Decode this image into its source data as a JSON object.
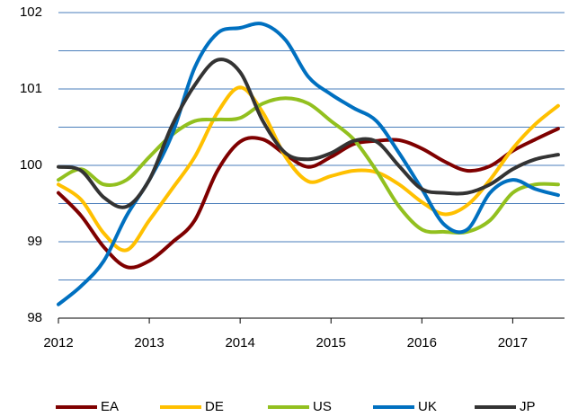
{
  "chart_data": {
    "type": "line",
    "x": [
      2012,
      2012.25,
      2012.5,
      2012.75,
      2013,
      2013.25,
      2013.5,
      2013.75,
      2014,
      2014.25,
      2014.5,
      2014.75,
      2015,
      2015.25,
      2015.5,
      2015.75,
      2016,
      2016.25,
      2016.5,
      2016.75,
      2017,
      2017.25,
      2017.5
    ],
    "series": [
      {
        "name": "EA",
        "color": "#7f0000",
        "values": [
          99.64,
          99.34,
          98.93,
          98.67,
          98.75,
          98.99,
          99.28,
          99.93,
          100.31,
          100.34,
          100.14,
          99.98,
          100.11,
          100.28,
          100.32,
          100.33,
          100.22,
          100.05,
          99.93,
          99.99,
          100.19,
          100.34,
          100.48
        ]
      },
      {
        "name": "DE",
        "color": "#ffc000",
        "values": [
          99.75,
          99.55,
          99.11,
          98.89,
          99.28,
          99.69,
          100.11,
          100.69,
          101.02,
          100.69,
          100.11,
          99.79,
          99.86,
          99.93,
          99.91,
          99.75,
          99.52,
          99.36,
          99.48,
          99.81,
          100.22,
          100.54,
          100.78
        ]
      },
      {
        "name": "US",
        "color": "#92c01f",
        "values": [
          99.81,
          99.95,
          99.75,
          99.81,
          100.11,
          100.4,
          100.58,
          100.6,
          100.62,
          100.81,
          100.88,
          100.81,
          100.58,
          100.34,
          99.93,
          99.46,
          99.16,
          99.13,
          99.13,
          99.28,
          99.64,
          99.75,
          99.75
        ]
      },
      {
        "name": "UK",
        "color": "#0070c0",
        "values": [
          98.18,
          98.42,
          98.75,
          99.34,
          99.81,
          100.4,
          101.28,
          101.73,
          101.8,
          101.85,
          101.64,
          101.16,
          100.93,
          100.75,
          100.58,
          100.16,
          99.69,
          99.22,
          99.16,
          99.64,
          99.81,
          99.69,
          99.61
        ]
      },
      {
        "name": "JP",
        "color": "#333333",
        "values": [
          99.98,
          99.93,
          99.58,
          99.46,
          99.81,
          100.52,
          101.05,
          101.38,
          101.22,
          100.58,
          100.16,
          100.08,
          100.16,
          100.32,
          100.31,
          99.99,
          99.69,
          99.64,
          99.64,
          99.75,
          99.95,
          100.08,
          100.14
        ]
      }
    ],
    "xlim": [
      2012,
      2017.57
    ],
    "xticks": [
      2012,
      2013,
      2014,
      2015,
      2016,
      2017
    ],
    "ylim": [
      98,
      102
    ],
    "yticks": [
      98,
      99,
      100,
      101,
      102
    ],
    "grid_yticks": [
      98.5,
      99,
      99.5,
      100,
      100.5,
      101,
      101.5,
      102
    ],
    "grid": true,
    "legend": "bottom"
  }
}
